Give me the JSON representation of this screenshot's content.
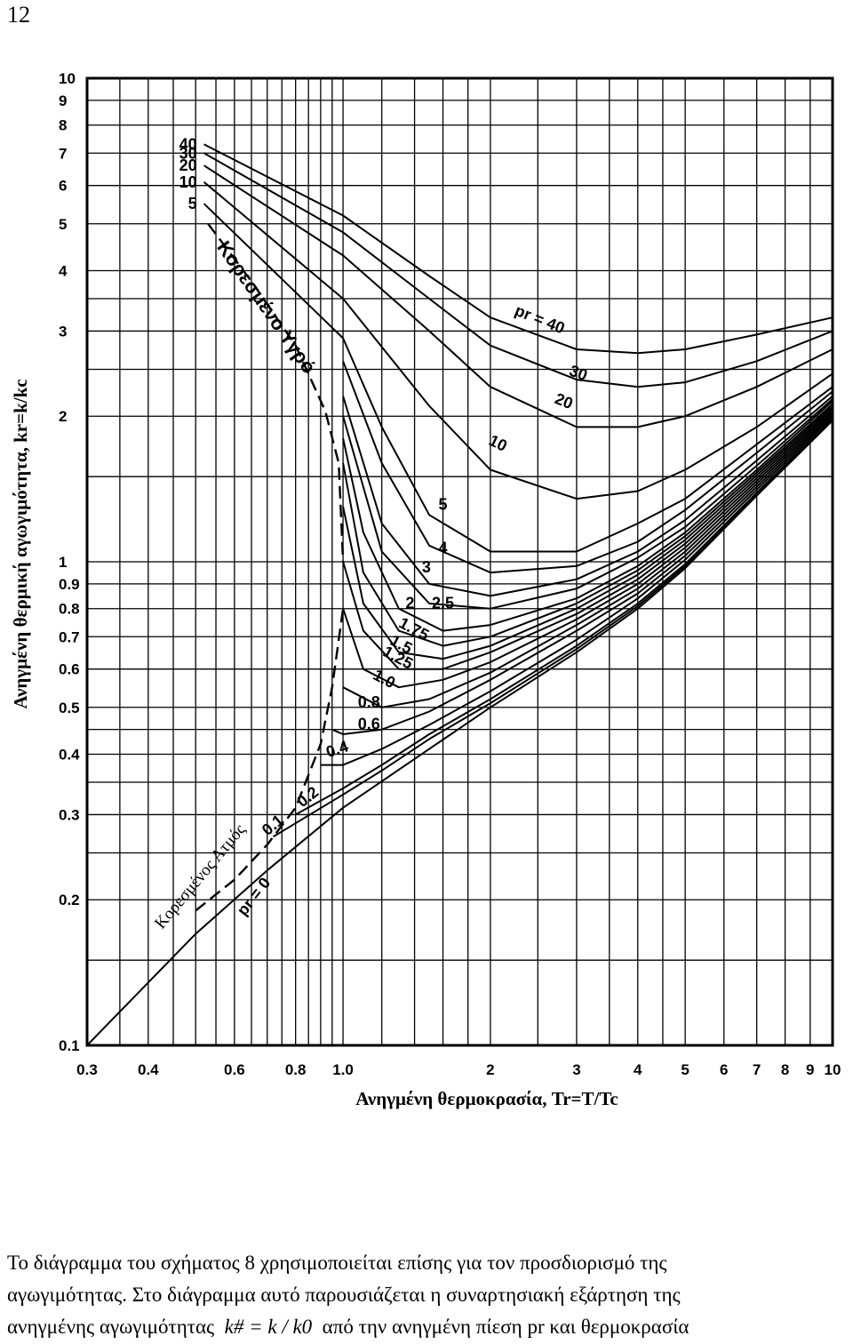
{
  "page_number": "12",
  "caption": {
    "line1": "Το διάγραμμα του σχήματος 8 χρησιμοποιείται επίσης για τον προσδιορισμό της",
    "line2": "αγωγιμότητας. Στο διάγραμμα αυτό παρουσιάζεται η συναρτησιακή εξάρτηση της",
    "line3_start": "ανηγμένης αγωγιμότητας",
    "formula": "k# = k / k0",
    "line3_end": "από την ανηγμένη πίεση pr και θερμοκρασία"
  },
  "chart_data": {
    "type": "line",
    "x_scale": "log",
    "y_scale": "log",
    "xlim": [
      0.3,
      10
    ],
    "ylim": [
      0.1,
      10
    ],
    "grid": true,
    "xlabel": "Ανηγμένη θερμοκρασία, Tr=T/Tc",
    "ylabel": "Ανηγμένη θερμική αγωγιμότητα, kr=k/kc",
    "x_ticks": [
      0.3,
      0.4,
      0.6,
      0.8,
      1.0,
      2,
      3,
      4,
      5,
      6,
      7,
      8,
      9,
      10
    ],
    "x_tick_labels": [
      "0.3",
      "0.4",
      "0.6",
      "0.8",
      "1.0",
      "2",
      "3",
      "4",
      "5",
      "6",
      "7",
      "8",
      "9",
      "10"
    ],
    "y_ticks": [
      0.1,
      0.2,
      0.3,
      0.4,
      0.5,
      0.6,
      0.7,
      0.8,
      0.9,
      1,
      2,
      3,
      4,
      5,
      6,
      7,
      8,
      9,
      10
    ],
    "y_tick_labels": [
      "0.1",
      "0.2",
      "0.3",
      "0.4",
      "0.5",
      "0.6",
      "0.7",
      "0.8",
      "0.9",
      "1",
      "2",
      "3",
      "4",
      "5",
      "6",
      "7",
      "8",
      "9",
      "10"
    ],
    "region_labels": {
      "saturated_liquid": "Κορεσμένο Υγρό",
      "saturated_vapor": "Κορεσμένος Ατμός"
    },
    "boundary": {
      "saturated_liquid": {
        "x": [
          0.53,
          0.65,
          0.8,
          0.92,
          0.98,
          1.0
        ],
        "y": [
          5.0,
          3.8,
          2.8,
          2.05,
          1.6,
          1.0
        ]
      },
      "saturated_vapor": {
        "x": [
          0.5,
          0.6,
          0.7,
          0.8,
          0.9,
          0.95,
          1.0
        ],
        "y": [
          0.19,
          0.22,
          0.26,
          0.31,
          0.42,
          0.55,
          0.8
        ]
      }
    },
    "series": [
      {
        "name": "40",
        "x": [
          0.52,
          1.0,
          1.5,
          2.0,
          3.0,
          4.0,
          5.0,
          7.0,
          10.0
        ],
        "y": [
          7.3,
          5.2,
          3.9,
          3.2,
          2.75,
          2.7,
          2.75,
          2.95,
          3.2
        ]
      },
      {
        "name": "30",
        "x": [
          0.52,
          1.0,
          1.5,
          2.0,
          3.0,
          4.0,
          5.0,
          7.0,
          10.0
        ],
        "y": [
          7.0,
          4.8,
          3.5,
          2.8,
          2.38,
          2.3,
          2.35,
          2.6,
          3.0
        ]
      },
      {
        "name": "20",
        "x": [
          0.52,
          1.0,
          1.5,
          2.0,
          3.0,
          4.0,
          5.0,
          7.0,
          10.0
        ],
        "y": [
          6.6,
          4.3,
          3.0,
          2.3,
          1.9,
          1.9,
          2.0,
          2.3,
          2.75
        ]
      },
      {
        "name": "10",
        "x": [
          0.52,
          1.0,
          1.5,
          2.0,
          3.0,
          4.0,
          5.0,
          7.0,
          10.0
        ],
        "y": [
          6.1,
          3.5,
          2.1,
          1.55,
          1.35,
          1.4,
          1.55,
          1.9,
          2.45
        ]
      },
      {
        "name": "5",
        "x": [
          0.52,
          1.0,
          1.2,
          1.5,
          2.0,
          3.0,
          4.0,
          5.0,
          7.0,
          10.0
        ],
        "y": [
          5.5,
          2.9,
          1.9,
          1.25,
          1.05,
          1.05,
          1.2,
          1.35,
          1.75,
          2.3
        ]
      },
      {
        "name": "4",
        "x": [
          1.0,
          1.2,
          1.5,
          2.0,
          3.0,
          4.0,
          5.0,
          7.0,
          10.0
        ],
        "y": [
          2.6,
          1.6,
          1.08,
          0.95,
          0.98,
          1.1,
          1.28,
          1.68,
          2.25
        ]
      },
      {
        "name": "3",
        "x": [
          1.0,
          1.2,
          1.5,
          2.0,
          3.0,
          4.0,
          5.0,
          7.0,
          10.0
        ],
        "y": [
          2.2,
          1.2,
          0.9,
          0.85,
          0.92,
          1.05,
          1.22,
          1.62,
          2.2
        ]
      },
      {
        "name": "2.5",
        "x": [
          1.0,
          1.2,
          1.5,
          2.0,
          3.0,
          4.0,
          5.0,
          7.0,
          10.0
        ],
        "y": [
          2.0,
          1.05,
          0.82,
          0.8,
          0.88,
          1.02,
          1.18,
          1.58,
          2.17
        ]
      },
      {
        "name": "2",
        "x": [
          1.0,
          1.1,
          1.3,
          1.6,
          2.0,
          3.0,
          4.0,
          5.0,
          7.0,
          10.0
        ],
        "y": [
          1.8,
          1.15,
          0.8,
          0.72,
          0.74,
          0.84,
          0.98,
          1.15,
          1.55,
          2.15
        ]
      },
      {
        "name": "1.75",
        "x": [
          1.0,
          1.1,
          1.3,
          1.6,
          2.0,
          3.0,
          4.0,
          5.0,
          7.0,
          10.0
        ],
        "y": [
          1.6,
          0.95,
          0.72,
          0.67,
          0.7,
          0.82,
          0.96,
          1.13,
          1.53,
          2.12
        ]
      },
      {
        "name": "1.5",
        "x": [
          1.0,
          1.1,
          1.3,
          1.6,
          2.0,
          3.0,
          4.0,
          5.0,
          7.0,
          10.0
        ],
        "y": [
          1.3,
          0.82,
          0.65,
          0.63,
          0.67,
          0.8,
          0.94,
          1.11,
          1.51,
          2.1
        ]
      },
      {
        "name": "1.25",
        "x": [
          1.0,
          1.1,
          1.3,
          1.6,
          2.0,
          3.0,
          4.0,
          5.0,
          7.0,
          10.0
        ],
        "y": [
          1.0,
          0.72,
          0.6,
          0.6,
          0.65,
          0.78,
          0.92,
          1.09,
          1.49,
          2.08
        ]
      },
      {
        "name": "1.0",
        "x": [
          1.0,
          1.1,
          1.3,
          1.6,
          2.0,
          3.0,
          4.0,
          5.0,
          7.0,
          10.0
        ],
        "y": [
          0.8,
          0.6,
          0.55,
          0.57,
          0.62,
          0.76,
          0.9,
          1.07,
          1.47,
          2.06
        ]
      },
      {
        "name": "0.8",
        "x": [
          1.0,
          1.2,
          1.5,
          2.0,
          3.0,
          4.0,
          5.0,
          7.0,
          10.0
        ],
        "y": [
          0.55,
          0.5,
          0.52,
          0.59,
          0.74,
          0.88,
          1.05,
          1.45,
          2.04
        ]
      },
      {
        "name": "0.6",
        "x": [
          0.95,
          1.0,
          1.2,
          1.5,
          2.0,
          3.0,
          4.0,
          5.0,
          7.0,
          10.0
        ],
        "y": [
          0.45,
          0.44,
          0.45,
          0.49,
          0.57,
          0.72,
          0.86,
          1.03,
          1.43,
          2.02
        ]
      },
      {
        "name": "0.4",
        "x": [
          0.9,
          1.0,
          1.2,
          1.5,
          2.0,
          3.0,
          4.0,
          5.0,
          7.0,
          10.0
        ],
        "y": [
          0.38,
          0.38,
          0.41,
          0.46,
          0.54,
          0.69,
          0.84,
          1.01,
          1.41,
          2.0
        ]
      },
      {
        "name": "0.2",
        "x": [
          0.8,
          1.0,
          1.2,
          1.5,
          2.0,
          3.0,
          4.0,
          5.0,
          7.0,
          10.0
        ],
        "y": [
          0.3,
          0.34,
          0.38,
          0.44,
          0.52,
          0.67,
          0.82,
          0.99,
          1.39,
          1.98
        ]
      },
      {
        "name": "0.1",
        "x": [
          0.72,
          1.0,
          1.2,
          1.5,
          2.0,
          3.0,
          4.0,
          5.0,
          7.0,
          10.0
        ],
        "y": [
          0.27,
          0.33,
          0.37,
          0.43,
          0.51,
          0.66,
          0.81,
          0.98,
          1.38,
          1.97
        ]
      },
      {
        "name": "0",
        "x": [
          0.3,
          0.5,
          0.7,
          1.0,
          1.5,
          2.0,
          3.0,
          4.0,
          5.0,
          7.0,
          10.0
        ],
        "y": [
          0.1,
          0.17,
          0.23,
          0.31,
          0.41,
          0.5,
          0.65,
          0.8,
          0.97,
          1.37,
          1.96
        ]
      }
    ],
    "curve_labels": [
      {
        "text": "pr = 40",
        "x": 2.5,
        "y": 3.1,
        "rotate": 22
      },
      {
        "text": "30",
        "x": 3.0,
        "y": 2.4,
        "rotate": 20
      },
      {
        "text": "20",
        "x": 2.8,
        "y": 2.1,
        "rotate": 22
      },
      {
        "text": "10",
        "x": 2.05,
        "y": 1.72,
        "rotate": 26
      },
      {
        "text": "5",
        "x": 1.6,
        "y": 1.28,
        "rotate": 0
      },
      {
        "text": "4",
        "x": 1.6,
        "y": 1.04,
        "rotate": 0
      },
      {
        "text": "3",
        "x": 1.48,
        "y": 0.95,
        "rotate": 0
      },
      {
        "text": "2",
        "x": 1.37,
        "y": 0.8,
        "rotate": 0
      },
      {
        "text": "2.5",
        "x": 1.6,
        "y": 0.8,
        "rotate": 0
      },
      {
        "text": "1.75",
        "x": 1.38,
        "y": 0.71,
        "rotate": 28
      },
      {
        "text": "1.5",
        "x": 1.3,
        "y": 0.66,
        "rotate": 28
      },
      {
        "text": "1.25",
        "x": 1.28,
        "y": 0.62,
        "rotate": 28
      },
      {
        "text": "1.0",
        "x": 1.2,
        "y": 0.56,
        "rotate": 28
      },
      {
        "text": "0.8",
        "x": 1.13,
        "y": 0.5,
        "rotate": 0
      },
      {
        "text": "0.6",
        "x": 1.13,
        "y": 0.45,
        "rotate": 0
      },
      {
        "text": "0.4",
        "x": 0.98,
        "y": 0.4,
        "rotate": -18
      },
      {
        "text": "0.2",
        "x": 0.86,
        "y": 0.32,
        "rotate": -38
      },
      {
        "text": "0.1",
        "x": 0.73,
        "y": 0.28,
        "rotate": -40
      },
      {
        "text": "pr = 0",
        "x": 0.67,
        "y": 0.2,
        "rotate": -52
      }
    ]
  }
}
